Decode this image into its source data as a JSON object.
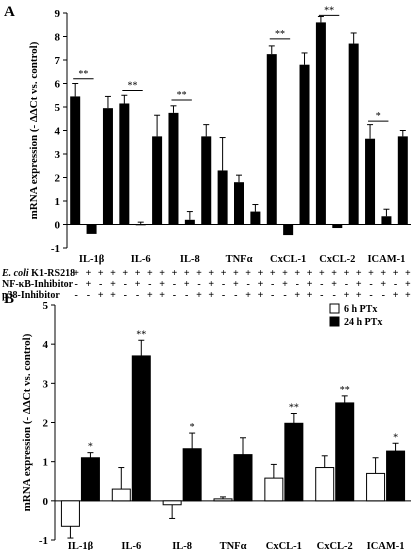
{
  "panels": {
    "A": {
      "letter": "A"
    },
    "B": {
      "letter": "B"
    }
  },
  "conditions": {
    "rows": [
      {
        "label": "E. coli K1-RS218",
        "label_italic": "E. coli",
        "label_rest": " K1-RS218",
        "pattern": [
          "+",
          "+",
          "+",
          "+"
        ]
      },
      {
        "label": "NF-κB-Inhibitor",
        "pattern": [
          "-",
          "+",
          "-",
          "+"
        ]
      },
      {
        "label": "p38-Inhibitor",
        "pattern": [
          "-",
          "-",
          "+",
          "+"
        ]
      }
    ]
  },
  "chart_data": [
    {
      "type": "bar",
      "panel": "A",
      "ylabel": "mRNA expression (- ΔΔCt vs. control)",
      "ylim": [
        -1,
        9
      ],
      "yticks": [
        -1,
        0,
        1,
        2,
        3,
        4,
        5,
        6,
        7,
        8,
        9
      ],
      "categories": [
        "IL-1β",
        "IL-6",
        "IL-8",
        "TNFα",
        "CxCL-1",
        "CxCL-2",
        "ICAM-1"
      ],
      "series": [
        {
          "values": [
            5.45,
            5.15,
            4.75,
            2.3,
            7.25,
            8.6,
            3.65
          ],
          "errors": [
            0.55,
            0.35,
            0.3,
            1.4,
            0.35,
            0.25,
            0.6
          ]
        },
        {
          "values": [
            -0.4,
            0.0,
            0.2,
            1.8,
            -0.45,
            -0.15,
            0.35
          ],
          "errors": [
            0.0,
            0.1,
            0.35,
            0.3,
            0.0,
            0.0,
            0.3
          ]
        },
        {
          "values": [
            4.95,
            3.75,
            3.75,
            0.55,
            6.8,
            7.7,
            3.75
          ],
          "errors": [
            0.5,
            0.9,
            0.5,
            0.3,
            0.5,
            0.45,
            0.25
          ]
        }
      ],
      "significance": [
        {
          "category": "IL-1β",
          "label": "**",
          "level": 6.2
        },
        {
          "category": "IL-6",
          "label": "**",
          "level": 5.7
        },
        {
          "category": "IL-8",
          "label": "**",
          "level": 5.3
        },
        {
          "category": "CxCL-1",
          "label": "**",
          "level": 7.9
        },
        {
          "category": "CxCL-2",
          "label": "**",
          "level": 8.9
        },
        {
          "category": "ICAM-1",
          "label": "*",
          "level": 4.4
        }
      ]
    },
    {
      "type": "bar",
      "panel": "B",
      "ylabel": "mRNA expression (- ΔΔCt vs. control)",
      "ylim": [
        -1,
        5
      ],
      "yticks": [
        -1,
        0,
        1,
        2,
        3,
        4,
        5
      ],
      "categories": [
        "IL-1β",
        "IL-6",
        "IL-8",
        "TNFα",
        "CxCL-1",
        "CxCL-2",
        "ICAM-1"
      ],
      "legend": {
        "placement": "top-right"
      },
      "series": [
        {
          "name": "6 h PTx",
          "color": "#ffffff",
          "values": [
            -0.65,
            0.3,
            -0.1,
            0.05,
            0.58,
            0.85,
            0.7
          ],
          "errors": [
            0.3,
            0.55,
            0.35,
            0.05,
            0.35,
            0.3,
            0.4
          ]
        },
        {
          "name": "24 h PTx",
          "color": "#000000",
          "values": [
            1.1,
            3.7,
            1.33,
            1.18,
            1.98,
            2.5,
            1.27
          ],
          "errors": [
            0.13,
            0.4,
            0.4,
            0.43,
            0.25,
            0.18,
            0.2
          ]
        }
      ],
      "significance": [
        "*",
        "**",
        "*",
        "",
        "**",
        "**",
        "*"
      ]
    }
  ]
}
